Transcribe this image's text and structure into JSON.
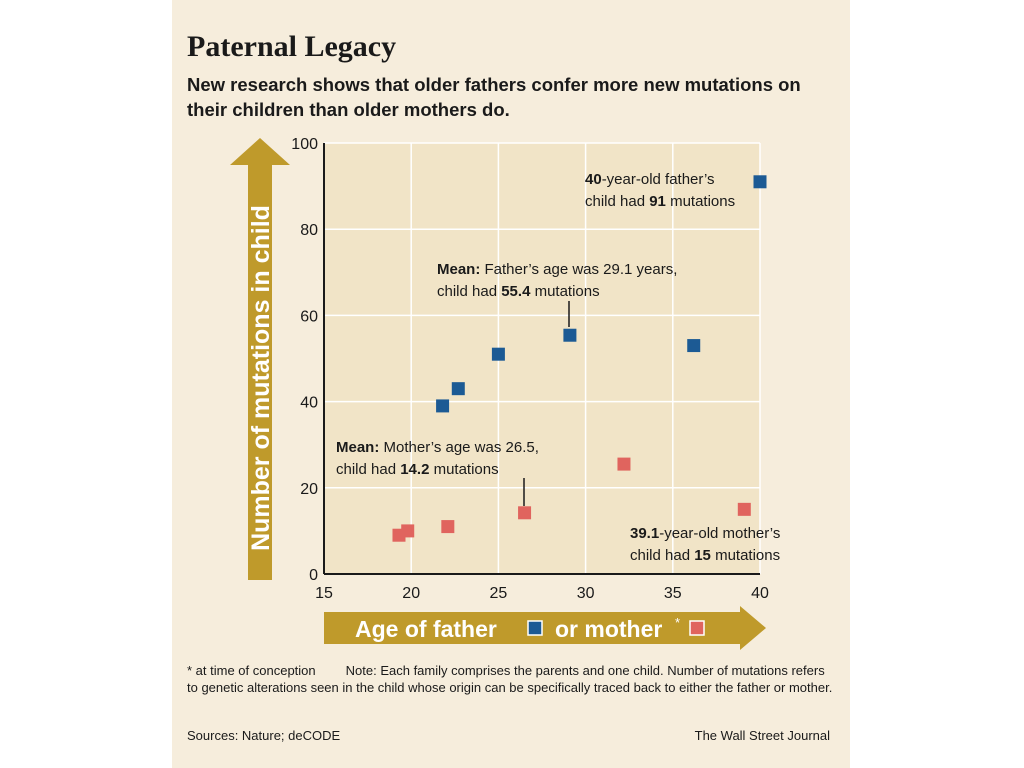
{
  "page": {
    "title": "Paternal Legacy",
    "subtitle": "New research shows that older fathers confer more new mutations on their children than older mothers do.",
    "footnote_star": "* at time of conception",
    "footnote_note": "Note: Each family comprises the parents and one child. Number of mutations refers to genetic alterations seen in the child whose origin can be specifically traced back to either the father or mother.",
    "sources": "Sources: Nature; deCODE",
    "publisher": "The Wall Street Journal"
  },
  "colors": {
    "background": "#f6eddc",
    "plot_bg": "#f1e4c7",
    "grid": "#ffffff",
    "father": "#1c5a94",
    "mother": "#e0645e",
    "arrow": "#bf9a2b"
  },
  "chart_data": {
    "type": "scatter",
    "title": "Paternal Legacy",
    "xlabel": "",
    "ylabel": "Number of mutations in child",
    "xlim": [
      15,
      40
    ],
    "ylim": [
      0,
      100
    ],
    "x_ticks": [
      15,
      20,
      25,
      30,
      35,
      40
    ],
    "y_ticks": [
      0,
      20,
      40,
      60,
      80,
      100
    ],
    "grid": true,
    "x_arrow_label": {
      "part1": "Age of father",
      "part2": "or mother",
      "star": "*"
    },
    "series": [
      {
        "name": "father",
        "color": "#1c5a94",
        "points": [
          {
            "x": 21.8,
            "y": 39
          },
          {
            "x": 22.7,
            "y": 43
          },
          {
            "x": 25.0,
            "y": 51
          },
          {
            "x": 29.1,
            "y": 55.4
          },
          {
            "x": 36.2,
            "y": 53
          },
          {
            "x": 40.0,
            "y": 91
          }
        ]
      },
      {
        "name": "mother",
        "color": "#e0645e",
        "points": [
          {
            "x": 19.3,
            "y": 9
          },
          {
            "x": 19.8,
            "y": 10
          },
          {
            "x": 22.1,
            "y": 11
          },
          {
            "x": 26.5,
            "y": 14.2
          },
          {
            "x": 32.2,
            "y": 25.5
          },
          {
            "x": 39.1,
            "y": 15
          }
        ]
      }
    ],
    "annotations": [
      {
        "bold": "40",
        "text1": "-year-old father’s",
        "text2a": "child had ",
        "bold2": "91",
        "text2b": " mutations"
      },
      {
        "bold": "Mean:",
        "text1": " Father’s age was 29.1 years,",
        "text2a": "child had ",
        "bold2": "55.4",
        "text2b": " mutations"
      },
      {
        "bold": "Mean:",
        "text1": " Mother’s age was 26.5,",
        "text2a": "child had ",
        "bold2": "14.2",
        "text2b": " mutations"
      },
      {
        "bold": "39.1",
        "text1": "-year-old mother’s",
        "text2a": "child had ",
        "bold2": "15",
        "text2b": " mutations"
      }
    ]
  }
}
